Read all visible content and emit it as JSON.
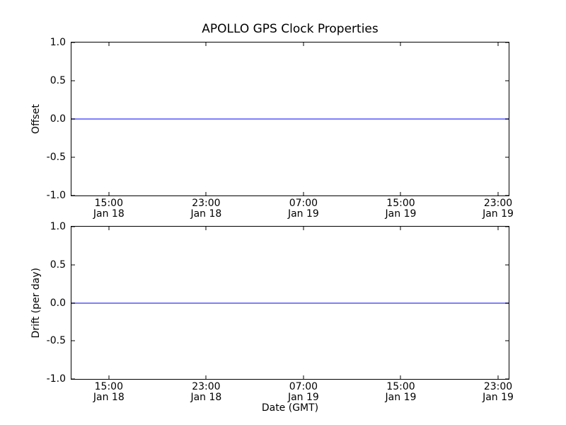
{
  "figure": {
    "title": "APOLLO GPS Clock Properties",
    "xlabel": "Date (GMT)",
    "background_color": "#ffffff",
    "axis_color": "#000000",
    "line_color": "#8080ff"
  },
  "x_ticks": [
    {
      "time": "15:00",
      "date": "Jan 18",
      "pos_pct": 8.55
    },
    {
      "time": "23:00",
      "date": "Jan 18",
      "pos_pct": 30.81
    },
    {
      "time": "07:00",
      "date": "Jan 19",
      "pos_pct": 53.06
    },
    {
      "time": "15:00",
      "date": "Jan 19",
      "pos_pct": 75.32
    },
    {
      "time": "23:00",
      "date": "Jan 19",
      "pos_pct": 97.58
    }
  ],
  "y_ticks": [
    {
      "label": "1.0",
      "pos_pct": 0
    },
    {
      "label": "0.5",
      "pos_pct": 25
    },
    {
      "label": "0.0",
      "pos_pct": 50
    },
    {
      "label": "-0.5",
      "pos_pct": 75
    },
    {
      "label": "-1.0",
      "pos_pct": 100
    }
  ],
  "subplots": [
    {
      "ylabel": "Offset",
      "constant_value": 0.0
    },
    {
      "ylabel": "Drift (per day)",
      "constant_value": 0.0
    }
  ],
  "chart_data": [
    {
      "type": "line",
      "title": "APOLLO GPS Clock Properties",
      "xlabel": "Date (GMT)",
      "ylabel": "Offset",
      "ylim": [
        -1.0,
        1.0
      ],
      "x": [
        "Jan 18 15:00",
        "Jan 18 23:00",
        "Jan 19 07:00",
        "Jan 19 15:00",
        "Jan 19 23:00"
      ],
      "series": [
        {
          "name": "Offset",
          "color": "#8080ff",
          "values": [
            0.0,
            0.0,
            0.0,
            0.0,
            0.0
          ]
        }
      ],
      "grid": false,
      "legend": "none"
    },
    {
      "type": "line",
      "title": "",
      "xlabel": "Date (GMT)",
      "ylabel": "Drift (per day)",
      "ylim": [
        -1.0,
        1.0
      ],
      "x": [
        "Jan 18 15:00",
        "Jan 18 23:00",
        "Jan 19 07:00",
        "Jan 19 15:00",
        "Jan 19 23:00"
      ],
      "series": [
        {
          "name": "Drift",
          "color": "#8080ff",
          "values": [
            0.0,
            0.0,
            0.0,
            0.0,
            0.0
          ]
        }
      ],
      "grid": false,
      "legend": "none"
    }
  ]
}
